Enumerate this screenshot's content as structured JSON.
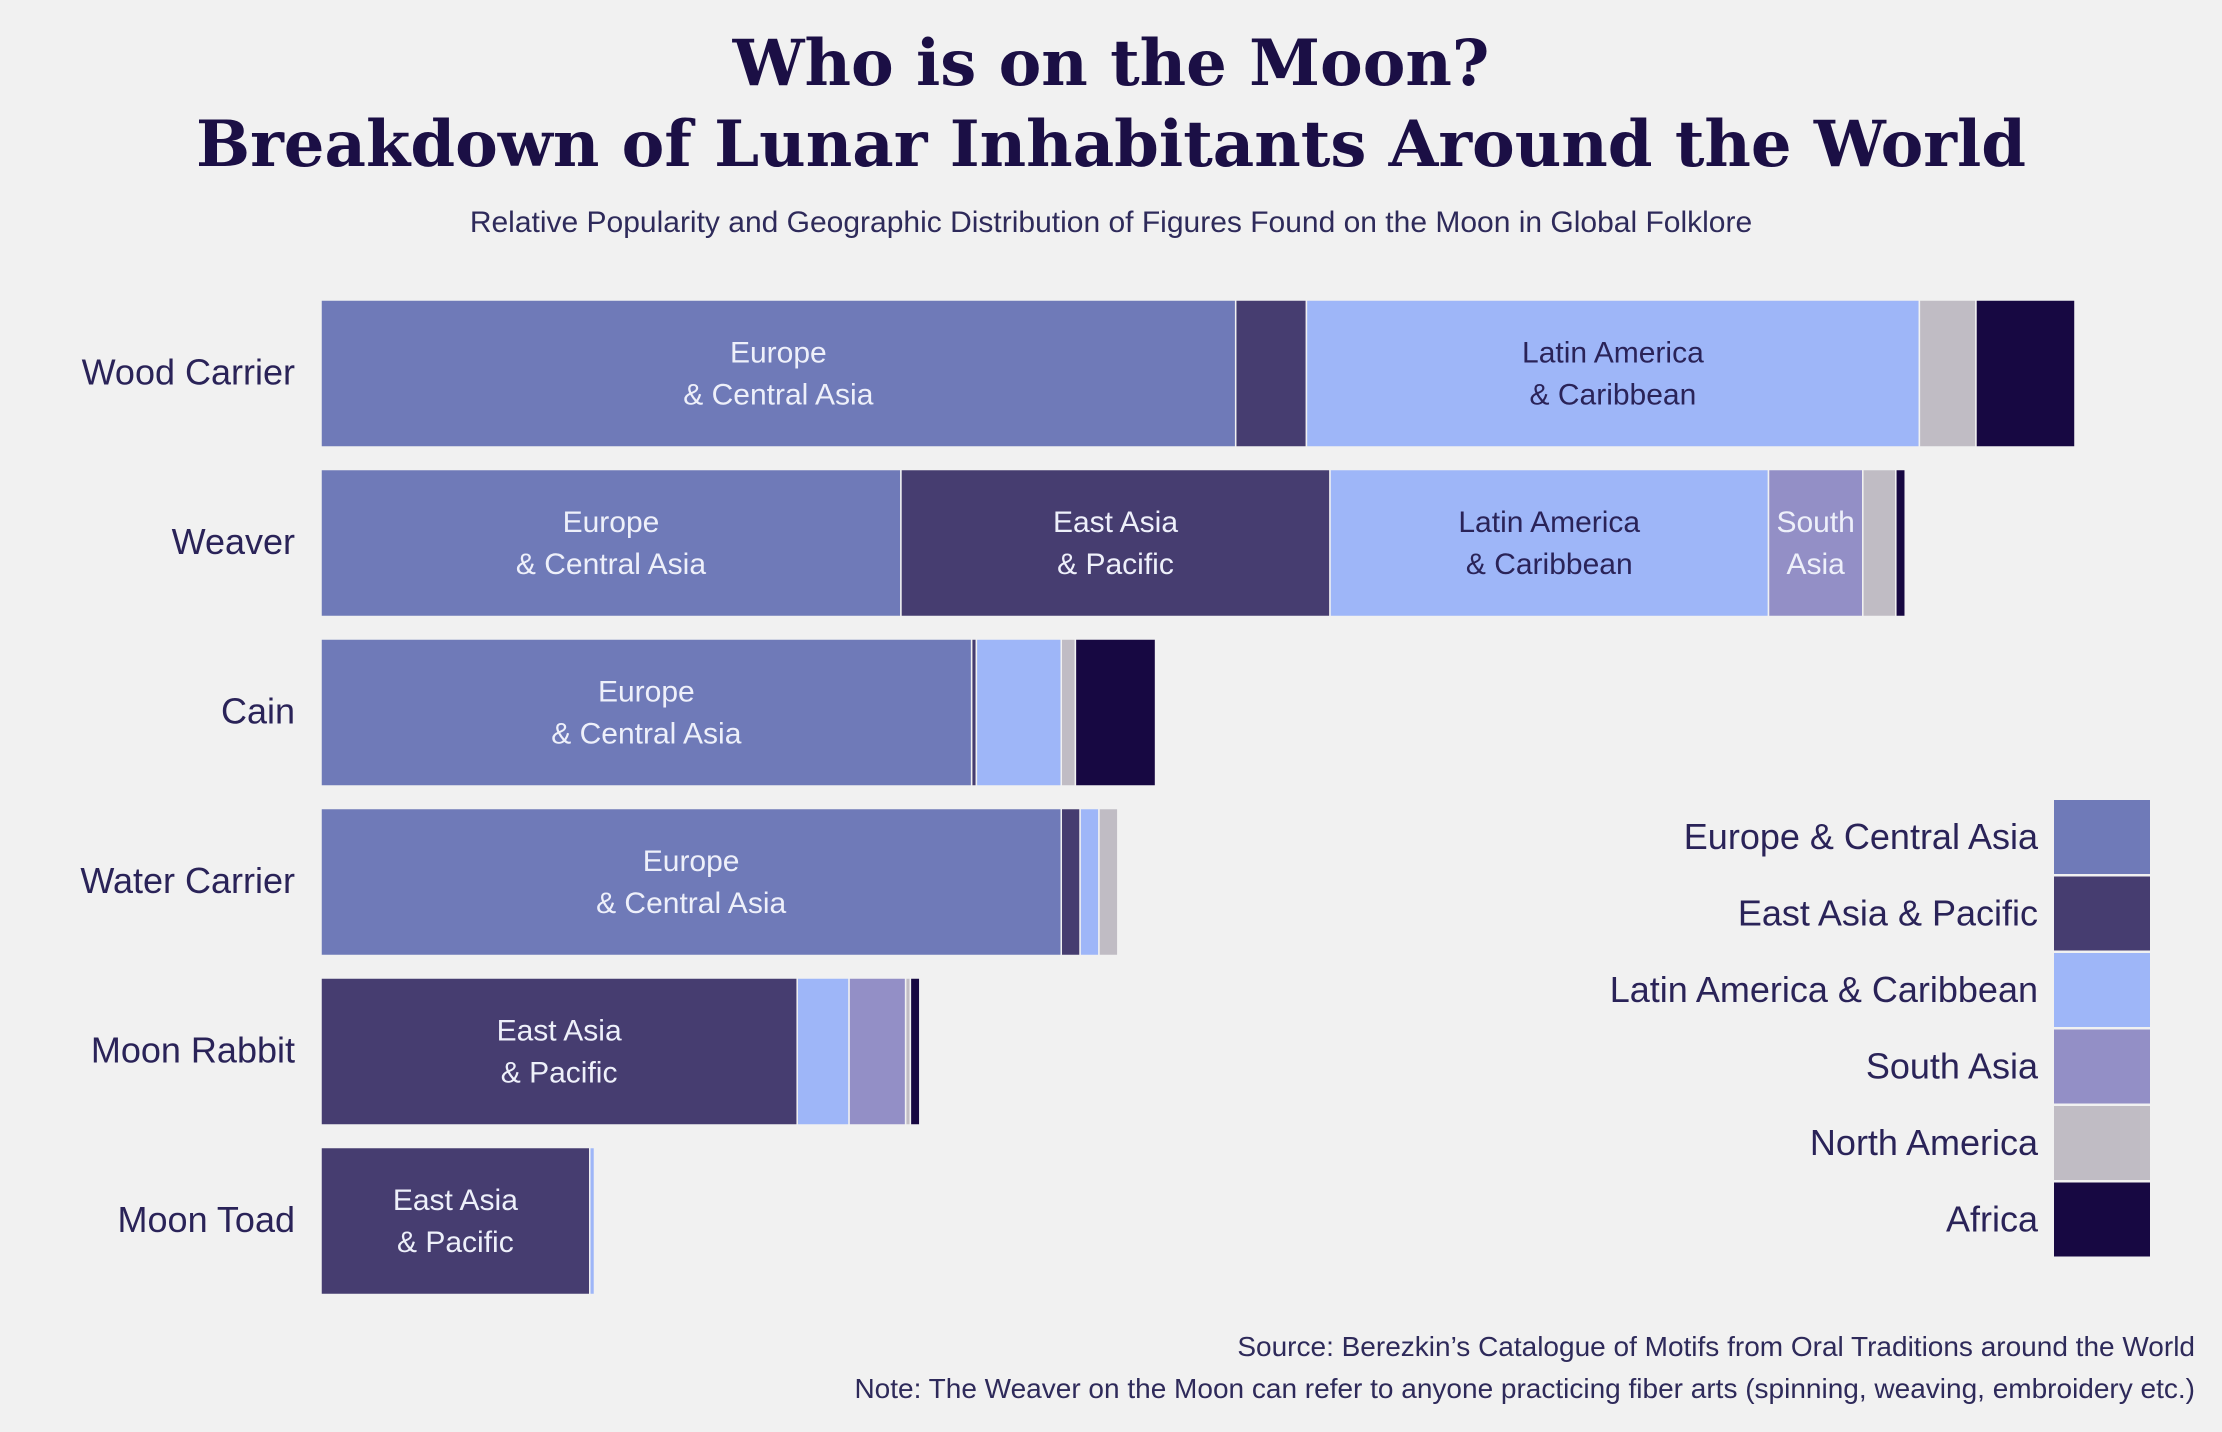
{
  "chart_data": {
    "type": "bar",
    "orientation": "horizontal",
    "stacked": true,
    "title": [
      "Who is on the Moon?",
      "Breakdown of Lunar Inhabitants Around the World"
    ],
    "subtitle": "Relative Popularity and Geographic Distribution of Figures Found on the Moon in Global Folklore",
    "categories": [
      "Wood Carrier",
      "Weaver",
      "Cain",
      "Water Carrier",
      "Moon Rabbit",
      "Moon Toad"
    ],
    "series": [
      {
        "name": "Europe & Central Asia",
        "segment_label": [
          "Europe",
          "& Central Asia"
        ],
        "color": "#6f7ab8",
        "label_color": "#eef0fa",
        "values": [
          97,
          61.5,
          69,
          78.5,
          0,
          0
        ]
      },
      {
        "name": "East Asia & Pacific",
        "segment_label": [
          "East Asia",
          "& Pacific"
        ],
        "color": "#463d70",
        "label_color": "#eef0fa",
        "values": [
          7.5,
          45.5,
          0.5,
          2,
          50.5,
          28.5
        ]
      },
      {
        "name": "Latin America & Caribbean",
        "segment_label": [
          "Latin America",
          "& Caribbean"
        ],
        "color": "#9eb6f8",
        "label_color": "#2a2358",
        "values": [
          65,
          46.5,
          9,
          2,
          5.5,
          0.5
        ]
      },
      {
        "name": "South Asia",
        "segment_label": [
          "South",
          "Asia"
        ],
        "color": "#938fc6",
        "label_color": "#eef0fa",
        "values": [
          0,
          10,
          0,
          0,
          6,
          0
        ]
      },
      {
        "name": "North America",
        "segment_label": [
          "North",
          "America"
        ],
        "color": "#c0bcc4",
        "label_color": "#2a2358",
        "values": [
          6,
          3.5,
          1.5,
          2,
          0.5,
          0
        ]
      },
      {
        "name": "Africa",
        "segment_label": [
          "Africa"
        ],
        "color": "#170842",
        "label_color": "#eef0fa",
        "values": [
          10.5,
          1,
          8.5,
          0,
          1,
          0
        ]
      }
    ],
    "legend_position": "bottom-right",
    "grid": false,
    "notes": [
      "Source: Berezkin’s Catalogue of Motifs from Oral Traditions around the World",
      "Note: The Weaver on the Moon can refer to anyone practicing fiber arts (spinning, weaving, embroidery etc.)"
    ]
  }
}
